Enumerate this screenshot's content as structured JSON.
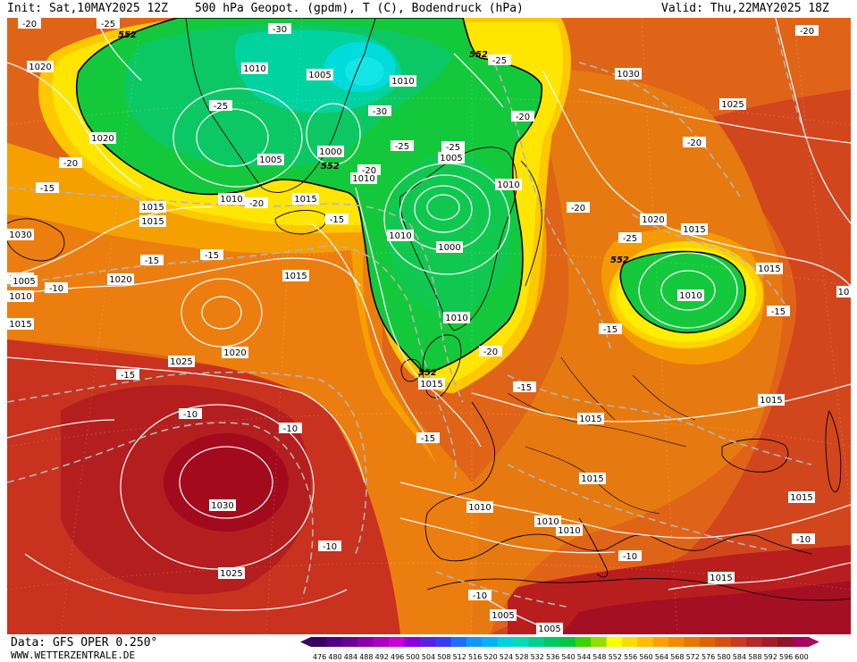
{
  "header": {
    "init": "Init: Sat,10MAY2025 12Z",
    "title": "500 hPa Geopot. (gpdm), T (C), Bodendruck (hPa)",
    "valid": "Valid: Thu,22MAY2025 18Z"
  },
  "footer": {
    "data_source": "Data: GFS OPER 0.250°",
    "website": "WWW.WETTERZENTRALE.DE"
  },
  "colorbar": {
    "ticks": [
      "476",
      "480",
      "484",
      "488",
      "492",
      "496",
      "500",
      "504",
      "508",
      "512",
      "516",
      "520",
      "524",
      "528",
      "532",
      "536",
      "540",
      "544",
      "548",
      "552",
      "556",
      "560",
      "564",
      "568",
      "572",
      "576",
      "580",
      "584",
      "588",
      "592",
      "596",
      "600"
    ],
    "colors": [
      "#3a0060",
      "#500080",
      "#6a0090",
      "#8a00a8",
      "#aa00c0",
      "#c800d8",
      "#8800e0",
      "#5a20e8",
      "#3a3aff",
      "#1e6eff",
      "#1496ff",
      "#00b4f0",
      "#00d2dc",
      "#00dcb4",
      "#00d28c",
      "#00c864",
      "#00c83c",
      "#3cd200",
      "#96dc00",
      "#ffff00",
      "#ffdc00",
      "#ffbe00",
      "#ffa000",
      "#f08c00",
      "#e67800",
      "#dc6400",
      "#d25014",
      "#c83c1e",
      "#b42828",
      "#a01e28",
      "#8c1428",
      "#aa0060"
    ]
  },
  "map": {
    "pressure_labels": [
      {
        "id": "p1",
        "text": "1020"
      },
      {
        "id": "p2",
        "text": "1010"
      },
      {
        "id": "p3",
        "text": "1005"
      },
      {
        "id": "p4",
        "text": "1010"
      },
      {
        "id": "p5",
        "text": "1020"
      },
      {
        "id": "p6",
        "text": "1005"
      },
      {
        "id": "p7",
        "text": "1000"
      },
      {
        "id": "p8",
        "text": "1010"
      },
      {
        "id": "p9",
        "text": "1015"
      },
      {
        "id": "p10",
        "text": "1010"
      },
      {
        "id": "p11",
        "text": "1015"
      },
      {
        "id": "p12",
        "text": "1015"
      },
      {
        "id": "p13",
        "text": "1005"
      },
      {
        "id": "p14",
        "text": "1010"
      },
      {
        "id": "p15",
        "text": "1010"
      },
      {
        "id": "p16",
        "text": "1000"
      },
      {
        "id": "p17",
        "text": "1010"
      },
      {
        "id": "p18",
        "text": "1010"
      },
      {
        "id": "p19",
        "text": "1015"
      },
      {
        "id": "p20",
        "text": "1030"
      },
      {
        "id": "p21",
        "text": "1025"
      },
      {
        "id": "p22",
        "text": "1020"
      },
      {
        "id": "p23",
        "text": "1015"
      },
      {
        "id": "p24",
        "text": "1015"
      },
      {
        "id": "p25",
        "text": "1010"
      },
      {
        "id": "p26",
        "text": "1015"
      },
      {
        "id": "p27",
        "text": "1005"
      },
      {
        "id": "p28",
        "text": "1010"
      },
      {
        "id": "p29",
        "text": "1020"
      },
      {
        "id": "p30",
        "text": "1025"
      },
      {
        "id": "p31",
        "text": "1020"
      },
      {
        "id": "p32",
        "text": "1015"
      },
      {
        "id": "p33",
        "text": "1015"
      },
      {
        "id": "p34",
        "text": "1030"
      },
      {
        "id": "p35",
        "text": "1025"
      },
      {
        "id": "p36",
        "text": "1010"
      },
      {
        "id": "p37",
        "text": "1010"
      },
      {
        "id": "p38",
        "text": "1010"
      },
      {
        "id": "p39",
        "text": "1005"
      },
      {
        "id": "p40",
        "text": "1005"
      },
      {
        "id": "p41",
        "text": "1015"
      },
      {
        "id": "p42",
        "text": "1015"
      },
      {
        "id": "p43",
        "text": "1015"
      },
      {
        "id": "p44",
        "text": "1015"
      },
      {
        "id": "p45",
        "text": "1030"
      },
      {
        "id": "p46",
        "text": "10"
      }
    ],
    "temperature_labels": [
      {
        "id": "t1",
        "text": "-20"
      },
      {
        "id": "t2",
        "text": "-25"
      },
      {
        "id": "t3",
        "text": "-30"
      },
      {
        "id": "t4",
        "text": "-25"
      },
      {
        "id": "t5",
        "text": "-30"
      },
      {
        "id": "t6",
        "text": "-25"
      },
      {
        "id": "t7",
        "text": "-25"
      },
      {
        "id": "t8",
        "text": "-20"
      },
      {
        "id": "t9",
        "text": "-20"
      },
      {
        "id": "t10",
        "text": "-20"
      },
      {
        "id": "t11",
        "text": "-15"
      },
      {
        "id": "t12",
        "text": "-20"
      },
      {
        "id": "t13",
        "text": "-15"
      },
      {
        "id": "t14",
        "text": "-15"
      },
      {
        "id": "t15",
        "text": "-10"
      },
      {
        "id": "t16",
        "text": "-15"
      },
      {
        "id": "t17",
        "text": "-15"
      },
      {
        "id": "t18",
        "text": "-10"
      },
      {
        "id": "t19",
        "text": "-10"
      },
      {
        "id": "t20",
        "text": "-15"
      },
      {
        "id": "t21",
        "text": "-20"
      },
      {
        "id": "t22",
        "text": "-15"
      },
      {
        "id": "t23",
        "text": "-20"
      },
      {
        "id": "t24",
        "text": "-25"
      },
      {
        "id": "t25",
        "text": "-20"
      },
      {
        "id": "t26",
        "text": "-20"
      },
      {
        "id": "t27",
        "text": "-15"
      },
      {
        "id": "t28",
        "text": "-15"
      },
      {
        "id": "t29",
        "text": "-10"
      },
      {
        "id": "t30",
        "text": "-10"
      },
      {
        "id": "t31",
        "text": "-10"
      },
      {
        "id": "t32",
        "text": "-10"
      },
      {
        "id": "t33",
        "text": "-25"
      }
    ],
    "geopotential_labels": [
      {
        "id": "g1",
        "text": "552"
      },
      {
        "id": "g2",
        "text": "552"
      },
      {
        "id": "g3",
        "text": "552"
      },
      {
        "id": "g4",
        "text": "552"
      },
      {
        "id": "g5",
        "text": "552"
      }
    ]
  }
}
